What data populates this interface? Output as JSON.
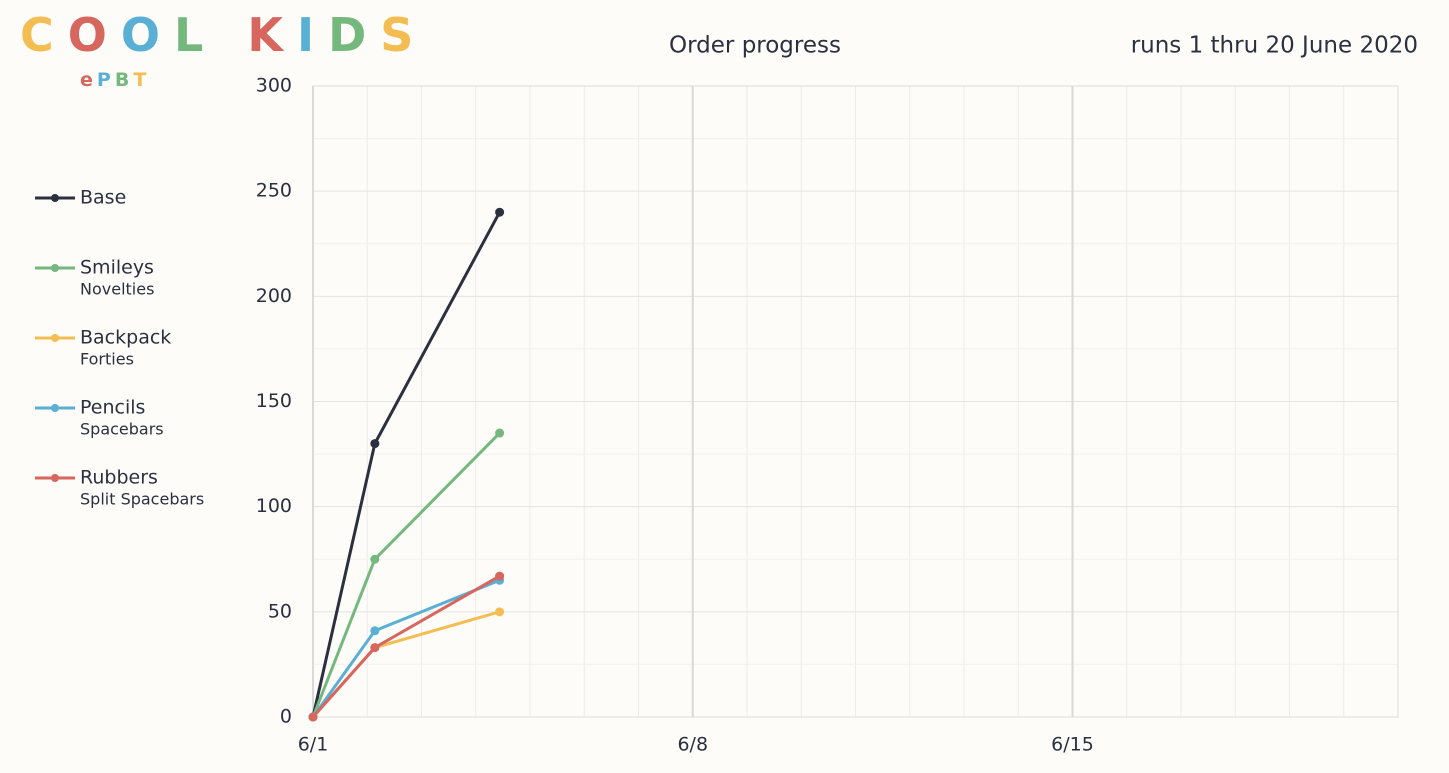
{
  "logo": {
    "title": "COOL KIDS",
    "subtitle": "ePBT"
  },
  "chart_data": {
    "type": "line",
    "title": "Order progress",
    "subtitle": "runs 1 thru 20 June 2020",
    "x": [
      0,
      1.14,
      3.44
    ],
    "xlim": [
      0,
      20
    ],
    "xticks": [
      {
        "value": 0,
        "label": "6/1"
      },
      {
        "value": 7,
        "label": "6/8"
      },
      {
        "value": 14,
        "label": "6/15"
      }
    ],
    "ylim": [
      0,
      300
    ],
    "yticks": [
      0,
      50,
      100,
      150,
      200,
      250,
      300
    ],
    "grid": true,
    "series": [
      {
        "name": "Base",
        "color": "#2b3040",
        "values": [
          0,
          130,
          240
        ]
      },
      {
        "name": "Smileys",
        "subtitle": "Novelties",
        "color": "#74b87e",
        "values": [
          0,
          75,
          135
        ]
      },
      {
        "name": "Backpack",
        "subtitle": "Forties",
        "color": "#f3bd52",
        "values": [
          0,
          33,
          50
        ]
      },
      {
        "name": "Pencils",
        "subtitle": "Spacebars",
        "color": "#5ab0d4",
        "values": [
          0,
          41,
          65
        ]
      },
      {
        "name": "Rubbers",
        "subtitle": "Split Spacebars",
        "color": "#d6665e",
        "values": [
          0,
          33,
          67
        ]
      }
    ]
  }
}
